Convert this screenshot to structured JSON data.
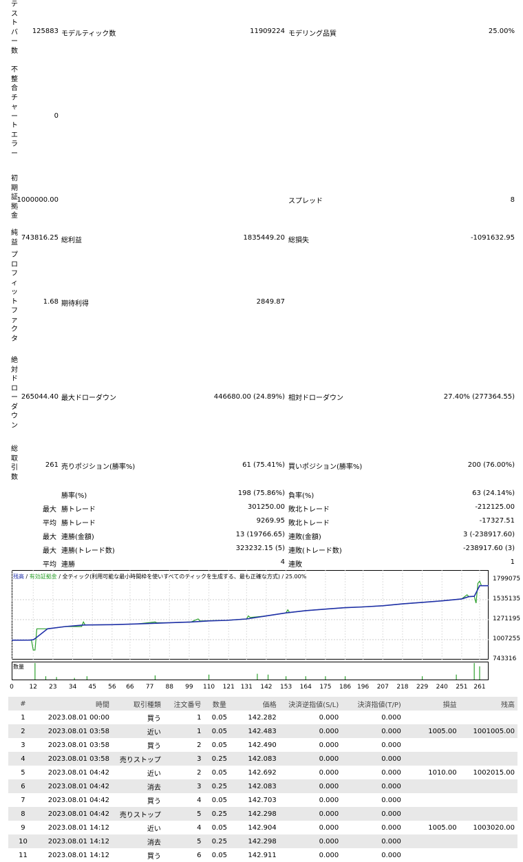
{
  "left_labels": {
    "bars": "テストバー数",
    "mismatch": "不整合チャートエラー",
    "deposit": "初期証拠金",
    "net_profit": "純益",
    "profit_factor": "プロフィットファクタ",
    "abs_drawdown": "絶対ドローダウン",
    "total_trades": "総取引数"
  },
  "row1": {
    "bars": "125883",
    "ticks_label": "モデルティック数",
    "ticks": "11909224",
    "quality_label": "モデリング品質",
    "quality": "25.00%"
  },
  "row2": {
    "mismatch": "0"
  },
  "row3": {
    "deposit": "1000000.00",
    "spread_label": "スプレッド",
    "spread": "8"
  },
  "row4": {
    "net": "743816.25",
    "gross_profit_label": "総利益",
    "gross_profit": "1835449.20",
    "gross_loss_label": "総損失",
    "gross_loss": "-1091632.95"
  },
  "row5": {
    "pf": "1.68",
    "expected_label": "期待利得",
    "expected": "2849.87"
  },
  "row6": {
    "abs_dd": "265044.40",
    "max_dd_label": "最大ドローダウン",
    "max_dd": "446680.00 (24.89%)",
    "rel_dd_label": "相対ドローダウン",
    "rel_dd": "27.40% (277364.55)"
  },
  "row7": {
    "total": "261",
    "short_label": "売りポジション(勝率%)",
    "short": "61 (75.41%)",
    "long_label": "買いポジション(勝率%)",
    "long": "200 (76.00%)"
  },
  "stats": [
    {
      "pre": "",
      "l": "勝率(%)",
      "lv": "198 (75.86%)",
      "r": "負率(%)",
      "rv": "63 (24.14%)"
    },
    {
      "pre": "最大",
      "l": "勝トレード",
      "lv": "301250.00",
      "r": "敗北トレード",
      "rv": "-212125.00"
    },
    {
      "pre": "平均",
      "l": "勝トレード",
      "lv": "9269.95",
      "r": "敗北トレード",
      "rv": "-17327.51"
    },
    {
      "pre": "最大",
      "l": "連勝(金額)",
      "lv": "13 (19766.65)",
      "r": "連敗(金額)",
      "rv": "3 (-238917.60)"
    },
    {
      "pre": "最大",
      "l": "連勝(トレード数)",
      "lv": "323232.15 (5)",
      "r": "連敗(トレード数)",
      "rv": "-238917.60 (3)"
    },
    {
      "pre": "平均",
      "l": "連勝",
      "lv": "4",
      "r": "連敗",
      "rv": "1"
    }
  ],
  "chart_legend": {
    "balance": "残高",
    "sep1": " / ",
    "equity": "有効証拠金",
    "sep2": " / ",
    "model": "全ティック(利用可能な最小時間枠を使いすべてのティックを生成する、最も正確な方式)",
    "sep3": " / ",
    "quality": "25.00%"
  },
  "volume_label": "数量",
  "colors": {
    "balance": "#1f2fa8",
    "equity": "#2ca02c",
    "volume": "#2ca02c",
    "header_bg": "#e8e8e8"
  },
  "chart_data": {
    "type": "line",
    "y_ticks": [
      "1799075",
      "1535135",
      "1271195",
      "1007255",
      "743316"
    ],
    "ylim": [
      743316,
      1799075
    ],
    "x_ticks": [
      "0",
      "12",
      "23",
      "34",
      "45",
      "56",
      "66",
      "77",
      "88",
      "99",
      "110",
      "121",
      "131",
      "142",
      "153",
      "164",
      "175",
      "186",
      "196",
      "207",
      "218",
      "229",
      "240",
      "251",
      "261"
    ],
    "xlim": [
      0,
      266
    ],
    "series": [
      {
        "name": "残高",
        "values": [
          [
            0,
            1000000
          ],
          [
            10,
            1001000
          ],
          [
            12,
            1005000
          ],
          [
            13,
            1020000
          ],
          [
            20,
            1150000
          ],
          [
            30,
            1180000
          ],
          [
            40,
            1200000
          ],
          [
            56,
            1205000
          ],
          [
            70,
            1215000
          ],
          [
            90,
            1232000
          ],
          [
            100,
            1240000
          ],
          [
            110,
            1255000
          ],
          [
            120,
            1262000
          ],
          [
            131,
            1280000
          ],
          [
            142,
            1320000
          ],
          [
            153,
            1360000
          ],
          [
            164,
            1390000
          ],
          [
            175,
            1410000
          ],
          [
            186,
            1430000
          ],
          [
            196,
            1440000
          ],
          [
            207,
            1455000
          ],
          [
            218,
            1480000
          ],
          [
            229,
            1500000
          ],
          [
            240,
            1520000
          ],
          [
            251,
            1545000
          ],
          [
            255,
            1575000
          ],
          [
            258,
            1580000
          ],
          [
            261,
            1720000
          ],
          [
            266,
            1720000
          ]
        ]
      },
      {
        "name": "有効証拠金",
        "values": [
          [
            0,
            1000000
          ],
          [
            11,
            1000000
          ],
          [
            12,
            870000
          ],
          [
            13,
            870000
          ],
          [
            14,
            1150000
          ],
          [
            20,
            1150000
          ],
          [
            30,
            1180000
          ],
          [
            39,
            1180000
          ],
          [
            40,
            1240000
          ],
          [
            41,
            1200000
          ],
          [
            56,
            1205000
          ],
          [
            70,
            1215000
          ],
          [
            80,
            1240000
          ],
          [
            81,
            1230000
          ],
          [
            90,
            1232000
          ],
          [
            100,
            1240000
          ],
          [
            104,
            1280000
          ],
          [
            105,
            1255000
          ],
          [
            120,
            1262000
          ],
          [
            131,
            1280000
          ],
          [
            132,
            1320000
          ],
          [
            133,
            1300000
          ],
          [
            142,
            1320000
          ],
          [
            153,
            1360000
          ],
          [
            154,
            1400000
          ],
          [
            155,
            1365000
          ],
          [
            164,
            1390000
          ],
          [
            175,
            1410000
          ],
          [
            186,
            1430000
          ],
          [
            196,
            1440000
          ],
          [
            207,
            1455000
          ],
          [
            218,
            1480000
          ],
          [
            229,
            1500000
          ],
          [
            240,
            1520000
          ],
          [
            251,
            1545000
          ],
          [
            254,
            1600000
          ],
          [
            255,
            1575000
          ],
          [
            258,
            1580000
          ],
          [
            259,
            1490000
          ],
          [
            260,
            1750000
          ],
          [
            261,
            1780000
          ],
          [
            262,
            1720000
          ],
          [
            266,
            1720000
          ]
        ]
      }
    ],
    "volume": [
      [
        13,
        1.0
      ],
      [
        19,
        0.2
      ],
      [
        25,
        0.15
      ],
      [
        35,
        0.1
      ],
      [
        42,
        0.2
      ],
      [
        80,
        0.25
      ],
      [
        110,
        0.3
      ],
      [
        137,
        0.35
      ],
      [
        143,
        0.3
      ],
      [
        153,
        0.2
      ],
      [
        164,
        0.2
      ],
      [
        175,
        0.2
      ],
      [
        186,
        0.2
      ],
      [
        229,
        0.2
      ],
      [
        248,
        0.3
      ],
      [
        258,
        1.0
      ],
      [
        261,
        0.8
      ]
    ]
  },
  "table": {
    "headers": [
      "#",
      "時間",
      "取引種類",
      "注文番号",
      "数量",
      "価格",
      "決済逆指値(S/L)",
      "決済指値(T/P)",
      "損益",
      "残高"
    ],
    "rows": [
      [
        "1",
        "2023.08.01 00:00",
        "買う",
        "1",
        "0.05",
        "142.282",
        "0.000",
        "0.000",
        "",
        ""
      ],
      [
        "2",
        "2023.08.01 03:58",
        "近い",
        "1",
        "0.05",
        "142.483",
        "0.000",
        "0.000",
        "1005.00",
        "1001005.00"
      ],
      [
        "3",
        "2023.08.01 03:58",
        "買う",
        "2",
        "0.05",
        "142.490",
        "0.000",
        "0.000",
        "",
        ""
      ],
      [
        "4",
        "2023.08.01 03:58",
        "売りストップ",
        "3",
        "0.25",
        "142.083",
        "0.000",
        "0.000",
        "",
        ""
      ],
      [
        "5",
        "2023.08.01 04:42",
        "近い",
        "2",
        "0.05",
        "142.692",
        "0.000",
        "0.000",
        "1010.00",
        "1002015.00"
      ],
      [
        "6",
        "2023.08.01 04:42",
        "消去",
        "3",
        "0.25",
        "142.083",
        "0.000",
        "0.000",
        "",
        ""
      ],
      [
        "7",
        "2023.08.01 04:42",
        "買う",
        "4",
        "0.05",
        "142.703",
        "0.000",
        "0.000",
        "",
        ""
      ],
      [
        "8",
        "2023.08.01 04:42",
        "売りストップ",
        "5",
        "0.25",
        "142.298",
        "0.000",
        "0.000",
        "",
        ""
      ],
      [
        "9",
        "2023.08.01 14:12",
        "近い",
        "4",
        "0.05",
        "142.904",
        "0.000",
        "0.000",
        "1005.00",
        "1003020.00"
      ],
      [
        "10",
        "2023.08.01 14:12",
        "消去",
        "5",
        "0.25",
        "142.298",
        "0.000",
        "0.000",
        "",
        ""
      ],
      [
        "11",
        "2023.08.01 14:12",
        "買う",
        "6",
        "0.05",
        "142.911",
        "0.000",
        "0.000",
        "",
        ""
      ]
    ]
  }
}
